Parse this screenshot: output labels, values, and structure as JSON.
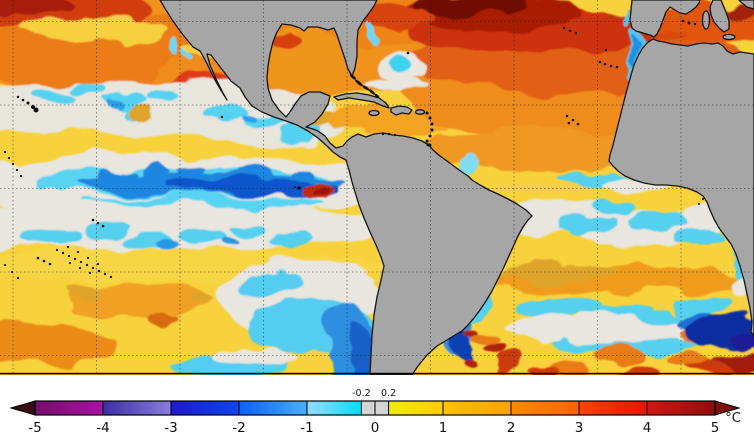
{
  "map": {
    "ocean_base_color": "#f8d23c",
    "land_color": "#a6a6a6",
    "coastline_color": "#141414",
    "gridline_color": "#1a1a1a",
    "map_border_color": "#000000"
  },
  "colorbar": {
    "unit_label": "°C",
    "min": -5,
    "max": 5,
    "tick_values": [
      -5,
      -4,
      -3,
      -2,
      -1,
      0,
      1,
      2,
      3,
      4,
      5
    ],
    "tick_labels": [
      "-5",
      "-4",
      "-3",
      "-2",
      "-1",
      "0",
      "1",
      "2",
      "3",
      "4",
      "5"
    ],
    "threshold_ticks": [
      {
        "value": -0.2,
        "label": "-0.2"
      },
      {
        "value": 0.2,
        "label": "0.2"
      }
    ],
    "segments": [
      {
        "from": -5,
        "to": -4,
        "start": "#750c6e",
        "end": "#a811a3"
      },
      {
        "from": -4,
        "to": -3,
        "start": "#3d2fa6",
        "end": "#8b7ddd"
      },
      {
        "from": -3,
        "to": -2,
        "start": "#2018cc",
        "end": "#0b46f0"
      },
      {
        "from": -2,
        "to": -1,
        "start": "#0a60f8",
        "end": "#47b0fa"
      },
      {
        "from": -1,
        "to": -0.2,
        "start": "#98dcfc",
        "end": "#04dcf8"
      },
      {
        "from": -0.2,
        "to": 0.2,
        "start": "#d4d4d4",
        "end": "#d4d4d4"
      },
      {
        "from": 0.2,
        "to": 1,
        "start": "#f2ee0a",
        "end": "#fccb04"
      },
      {
        "from": 1,
        "to": 2,
        "start": "#fbc100",
        "end": "#f9a303"
      },
      {
        "from": 2,
        "to": 3,
        "start": "#fa8b01",
        "end": "#fb6301"
      },
      {
        "from": 3,
        "to": 4,
        "start": "#fb4400",
        "end": "#e91202"
      },
      {
        "from": 4,
        "to": 5,
        "start": "#d31511",
        "end": "#8d0e0e"
      }
    ],
    "left_arrow_color": "#3a0a16",
    "right_arrow_color": "#7c100d",
    "outline_color": "#000000"
  },
  "chart_data": {
    "type": "heatmap",
    "subject": "sea-surface-temperature-anomaly",
    "scale_unit": "°C",
    "scale_ticks": [
      -5,
      -4,
      -3,
      -2,
      -1,
      0,
      1,
      2,
      3,
      4,
      5
    ],
    "scale_thresholds": [
      -0.2,
      0.2
    ],
    "scale_range": [
      -5,
      5
    ]
  }
}
